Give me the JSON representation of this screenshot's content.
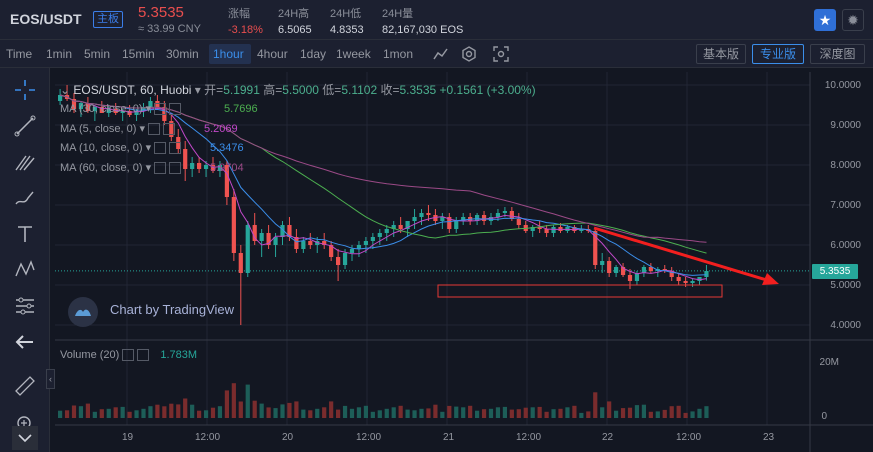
{
  "header": {
    "pair": "EOS/USDT",
    "badge": "主板",
    "price": "5.3535",
    "cny": "≈ 33.99 CNY",
    "stats": [
      {
        "label": "涨幅",
        "value": "-3.18%"
      },
      {
        "label": "24H高",
        "value": "6.5065"
      },
      {
        "label": "24H低",
        "value": "4.8353"
      },
      {
        "label": "24H量",
        "value": "82,167,030 EOS"
      }
    ],
    "star_icon": "star-icon",
    "theme_icon": "sun-icon"
  },
  "toolbar": {
    "timeframes": [
      "Time",
      "1min",
      "5min",
      "15min",
      "30min",
      "1hour",
      "4hour",
      "1day",
      "1week",
      "1mon"
    ],
    "active": "1hour",
    "modes": [
      "基本版",
      "专业版",
      "深度图"
    ],
    "active_mode": "专业版"
  },
  "chart": {
    "symbol_line": "EOS/USDT, 60, Huobi",
    "open_label": "开=",
    "open": "5.1991",
    "high_label": "高=",
    "high": "5.5000",
    "low_label": "低=",
    "low": "5.1102",
    "close_label": "收=",
    "close": "5.3535",
    "change": "+0.1561 (+3.00%)",
    "ma": [
      {
        "label": "MA (30, close, 0)",
        "value": "5.7696",
        "color": "#4caf50"
      },
      {
        "label": "MA (5, close, 0)",
        "value": "5.2069",
        "color": "#c048c8"
      },
      {
        "label": "MA (10, close, 0)",
        "value": "5.3476",
        "color": "#3b8eea"
      },
      {
        "label": "MA (60, close, 0)",
        "value": "5.9704",
        "color": "#9b4a87"
      }
    ],
    "y_ticks": [
      "10.0000",
      "9.0000",
      "8.0000",
      "7.0000",
      "6.0000",
      "5.0000",
      "4.0000"
    ],
    "current_price_tag": "5.3535",
    "x_ticks": [
      "19",
      "12:00",
      "20",
      "12:00",
      "21",
      "12:00",
      "22",
      "12:00",
      "23"
    ],
    "watermark": "Chart by TradingView",
    "volume_label": "Volume (20)",
    "volume_value": "1.783M",
    "volume_ticks": [
      "20M",
      "0"
    ],
    "up_color": "#26a69a",
    "down_color": "#ef5350"
  }
}
